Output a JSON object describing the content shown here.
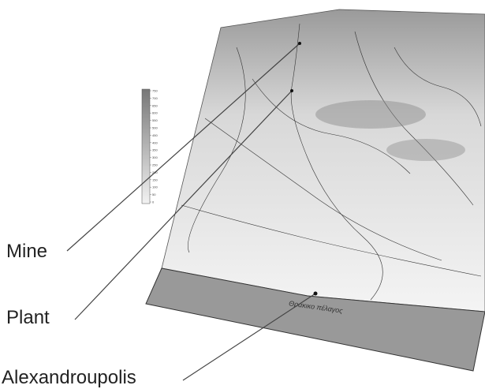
{
  "labels": {
    "mine": "Mine",
    "plant": "Plant",
    "city": "Alexandroupolis"
  },
  "sea_label": "Θρακικο πέλαγος",
  "legend": {
    "ticks": [
      750,
      700,
      650,
      600,
      550,
      500,
      450,
      400,
      350,
      300,
      250,
      200,
      150,
      100,
      50,
      0
    ]
  }
}
